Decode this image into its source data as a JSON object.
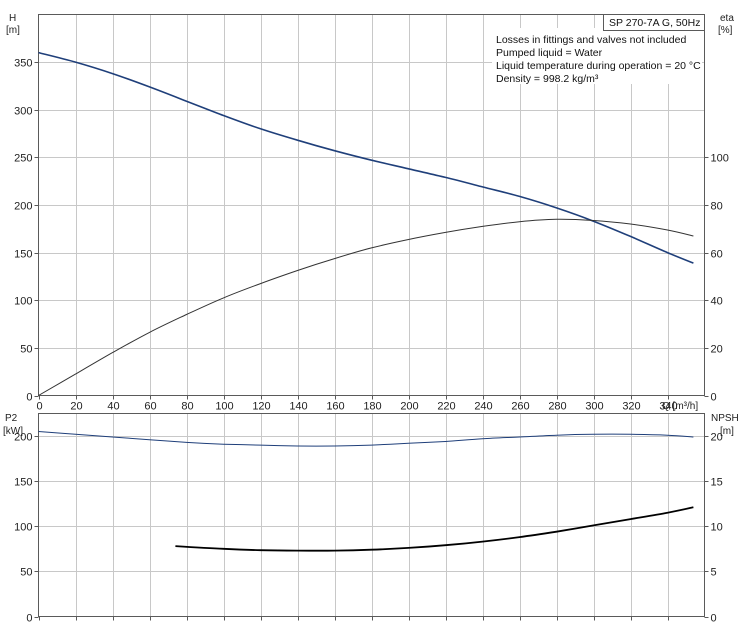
{
  "chart_data": [
    {
      "type": "line",
      "title": "SP 270-7A G, 50Hz",
      "notes": [
        "Losses in fittings and valves not included",
        "Pumped liquid = Water",
        "Liquid temperature during operation = 20 °C",
        "Density = 998.2 kg/m³"
      ],
      "xlabel": "Q [m³/h]",
      "xlim": [
        0,
        360
      ],
      "xticks": [
        0,
        20,
        40,
        60,
        80,
        100,
        120,
        140,
        160,
        180,
        200,
        220,
        240,
        260,
        280,
        300,
        320,
        340
      ],
      "ylabel_left": [
        "H",
        "[m]"
      ],
      "ylim_left": [
        0,
        400
      ],
      "yticks_left": [
        0,
        50,
        100,
        150,
        200,
        250,
        300,
        350
      ],
      "ylabel_right": [
        "eta",
        "[%]"
      ],
      "ylim_right": [
        0,
        160
      ],
      "yticks_right": [
        0,
        20,
        40,
        60,
        80,
        100
      ],
      "grid": true,
      "series": [
        {
          "name": "H",
          "axis": "left",
          "color": "#1f3f7a",
          "x": [
            0,
            20,
            40,
            60,
            80,
            100,
            120,
            140,
            160,
            180,
            200,
            220,
            240,
            260,
            280,
            300,
            320,
            340,
            354
          ],
          "y": [
            360,
            350,
            338,
            324,
            309,
            294,
            280,
            268,
            257,
            247,
            238,
            229,
            219,
            209,
            197,
            183,
            167,
            150,
            139
          ]
        },
        {
          "name": "eta",
          "axis": "right",
          "color": "#333333",
          "x": [
            0,
            20,
            40,
            60,
            80,
            100,
            120,
            140,
            160,
            180,
            200,
            220,
            240,
            260,
            280,
            300,
            320,
            340,
            354
          ],
          "y": [
            0,
            9,
            18,
            26.5,
            34,
            41,
            47,
            52.5,
            57.5,
            62,
            65.5,
            68.5,
            71,
            73,
            74,
            73.5,
            72,
            69.5,
            67
          ]
        }
      ]
    },
    {
      "type": "line",
      "xlim": [
        0,
        360
      ],
      "ylabel_left": [
        "P2",
        "[kW]"
      ],
      "ylim_left": [
        0,
        225
      ],
      "yticks_left": [
        0,
        50,
        100,
        150,
        200
      ],
      "ylabel_right": [
        "NPSH",
        "[m]"
      ],
      "ylim_right": [
        0,
        22.5
      ],
      "yticks_right": [
        0,
        5,
        10,
        15,
        20
      ],
      "grid": true,
      "series": [
        {
          "name": "P2",
          "axis": "left",
          "color": "#1f3f7a",
          "x": [
            0,
            20,
            40,
            60,
            80,
            100,
            120,
            140,
            160,
            180,
            200,
            220,
            240,
            260,
            280,
            300,
            320,
            340,
            354
          ],
          "y": [
            205,
            202,
            199,
            196,
            193,
            191,
            190,
            189,
            189,
            190,
            192,
            194,
            197,
            199,
            201,
            202,
            202,
            201,
            199
          ]
        },
        {
          "name": "NPSH",
          "axis": "right",
          "color": "#000000",
          "x": [
            74,
            100,
            120,
            140,
            160,
            180,
            200,
            220,
            240,
            260,
            280,
            300,
            320,
            340,
            354
          ],
          "y": [
            7.8,
            7.5,
            7.35,
            7.3,
            7.3,
            7.4,
            7.6,
            7.9,
            8.3,
            8.8,
            9.4,
            10.1,
            10.8,
            11.5,
            12.1
          ]
        }
      ]
    }
  ]
}
